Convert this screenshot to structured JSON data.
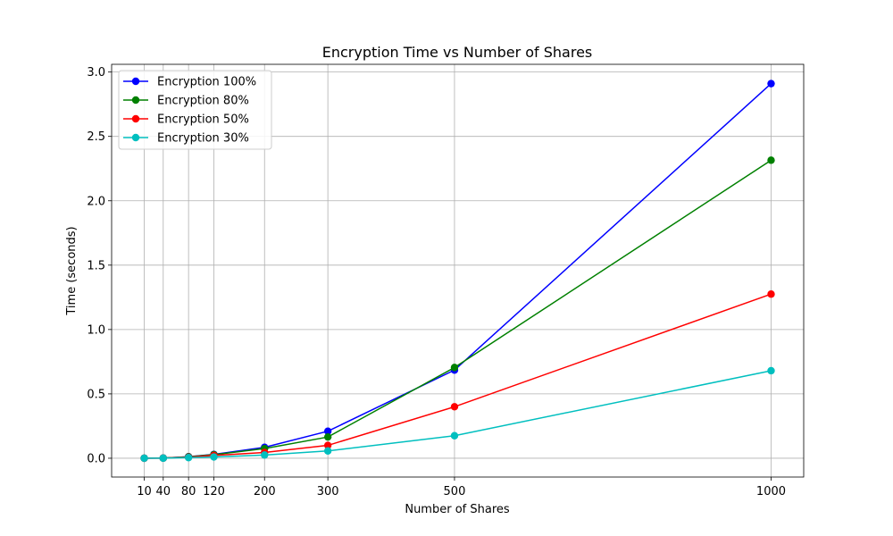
{
  "chart_data": {
    "type": "line",
    "title": "Encryption Time vs Number of Shares",
    "xlabel": "Number of Shares",
    "ylabel": "Time (seconds)",
    "x": [
      10,
      40,
      80,
      120,
      200,
      300,
      500,
      1000
    ],
    "xticks": [
      10,
      40,
      80,
      120,
      200,
      300,
      500,
      1000
    ],
    "yticks": [
      "0.0",
      "0.5",
      "1.0",
      "1.5",
      "2.0",
      "2.5",
      "3.0"
    ],
    "xlim": [
      -41.5,
      1051.5
    ],
    "ylim": [
      -0.146,
      3.06
    ],
    "grid": true,
    "legend_position": "upper-left",
    "series": [
      {
        "name": "Encryption 100%",
        "color": "#0000ff",
        "values": [
          0.0005,
          0.0015,
          0.012,
          0.03,
          0.085,
          0.21,
          0.685,
          2.91
        ]
      },
      {
        "name": "Encryption 80%",
        "color": "#008000",
        "values": [
          0.0004,
          0.0013,
          0.011,
          0.028,
          0.075,
          0.165,
          0.705,
          2.315
        ]
      },
      {
        "name": "Encryption 50%",
        "color": "#ff0000",
        "values": [
          0.0003,
          0.001,
          0.008,
          0.022,
          0.045,
          0.1,
          0.4,
          1.275
        ]
      },
      {
        "name": "Encryption 30%",
        "color": "#00bfbf",
        "values": [
          0.0002,
          0.0006,
          0.005,
          0.01,
          0.025,
          0.057,
          0.175,
          0.68
        ]
      }
    ]
  }
}
